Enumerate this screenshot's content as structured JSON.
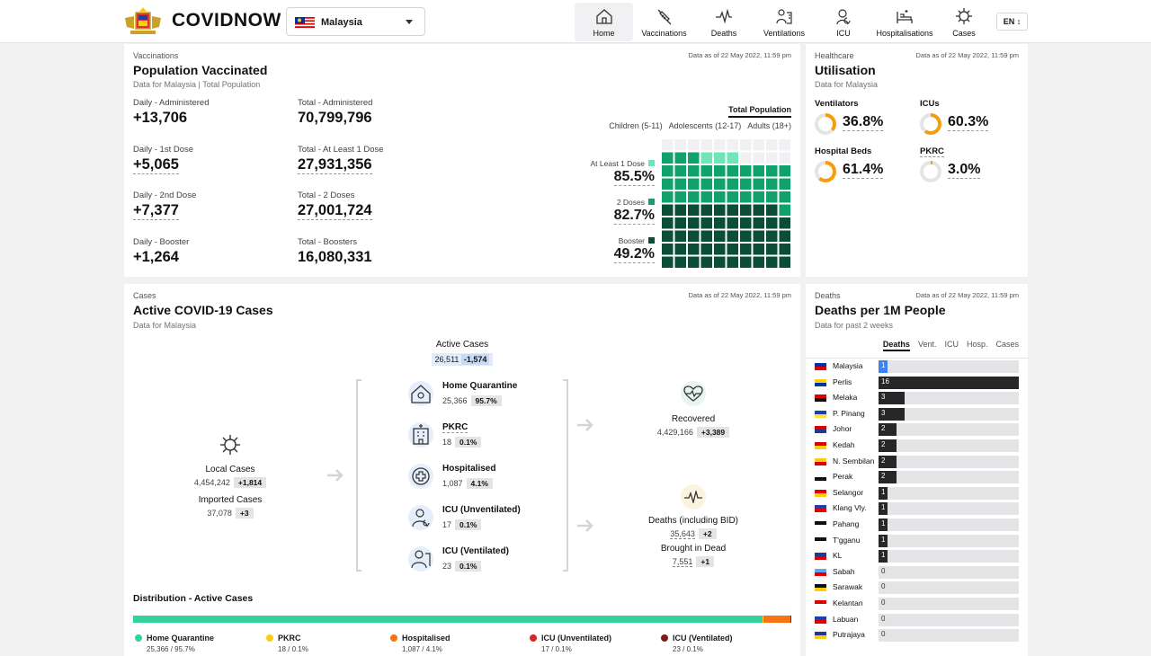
{
  "header": {
    "brand": "COVIDNOW",
    "country": "Malaysia",
    "lang": "EN ↕",
    "nav": [
      {
        "label": "Home",
        "icon": "home-icon"
      },
      {
        "label": "Vaccinations",
        "icon": "syringe-icon"
      },
      {
        "label": "Deaths",
        "icon": "pulse-icon"
      },
      {
        "label": "Ventilations",
        "icon": "ventilator-icon"
      },
      {
        "label": "ICU",
        "icon": "icu-icon"
      },
      {
        "label": "Hospitalisations",
        "icon": "bed-icon"
      },
      {
        "label": "Cases",
        "icon": "virus-icon"
      }
    ]
  },
  "vax": {
    "cat": "Vaccinations",
    "title": "Population Vaccinated",
    "sub1": "Data for Malaysia",
    "sub2": "Total Population",
    "asof": "Data as of 22 May 2022, 11:59 pm",
    "stats": [
      {
        "l": "Daily - Administered",
        "v": "+13,706"
      },
      {
        "l": "Total - Administered",
        "v": "70,799,796"
      },
      {
        "l": "Daily - 1st Dose",
        "v": "+5,065"
      },
      {
        "l": "Total - At Least 1 Dose",
        "v": "27,931,356"
      },
      {
        "l": "Daily - 2nd Dose",
        "v": "+7,377"
      },
      {
        "l": "Total - 2 Doses",
        "v": "27,001,724"
      },
      {
        "l": "Daily - Booster",
        "v": "+1,264"
      },
      {
        "l": "Total - Boosters",
        "v": "16,080,331"
      }
    ],
    "tab_total": "Total Population",
    "tabs": [
      "Children (5-11)",
      "Adolescents (12-17)",
      "Adults (18+)"
    ],
    "waffle": [
      {
        "l": "At Least 1 Dose",
        "v": "85.5%",
        "pct": 85.5,
        "c": "#6ee7b7"
      },
      {
        "l": "2 Doses",
        "v": "82.7%",
        "pct": 82.7,
        "c": "#10a26d"
      },
      {
        "l": "Booster",
        "v": "49.2%",
        "pct": 49.2,
        "c": "#0b4d36"
      }
    ]
  },
  "util": {
    "cat": "Healthcare",
    "title": "Utilisation",
    "sub": "Data for Malaysia",
    "asof": "Data as of 22 May 2022, 11:59 pm",
    "items": [
      {
        "l": "Ventilators",
        "v": "36.8%",
        "pct": 36.8
      },
      {
        "l": "ICUs",
        "v": "60.3%",
        "pct": 60.3
      },
      {
        "l": "Hospital Beds",
        "v": "61.4%",
        "pct": 61.4
      },
      {
        "l": "PKRC",
        "v": "3.0%",
        "pct": 3.0
      }
    ]
  },
  "cases": {
    "cat": "Cases",
    "title": "Active COVID-19 Cases",
    "sub": "Data for Malaysia",
    "asof": "Data as of 22 May 2022, 11:59 pm",
    "active": {
      "l": "Active Cases",
      "v": "26,511",
      "d": "-1,574"
    },
    "local": {
      "l": "Local Cases",
      "v": "4,454,242",
      "d": "+1,814"
    },
    "imported": {
      "l": "Imported Cases",
      "v": "37,078",
      "d": "+3"
    },
    "mid": [
      {
        "l": "Home Quarantine",
        "v": "25,366",
        "d": "95.7%"
      },
      {
        "l": "PKRC",
        "v": "18",
        "d": "0.1%"
      },
      {
        "l": "Hospitalised",
        "v": "1,087",
        "d": "4.1%"
      },
      {
        "l": "ICU (Unventilated)",
        "v": "17",
        "d": "0.1%"
      },
      {
        "l": "ICU (Ventilated)",
        "v": "23",
        "d": "0.1%"
      }
    ],
    "recovered": {
      "l": "Recovered",
      "v": "4,429,166",
      "d": "+3,389"
    },
    "deaths": {
      "l": "Deaths (including BID)",
      "v": "35,643",
      "d": "+2"
    },
    "bid": {
      "l": "Brought in Dead",
      "v": "7,551",
      "d": "+1"
    },
    "dist_title": "Distribution - Active Cases",
    "dist": [
      {
        "l": "Home Quarantine",
        "v": "25,366 / 95.7%",
        "pct": 95.7,
        "c": "#34d399"
      },
      {
        "l": "PKRC",
        "v": "18 / 0.1%",
        "pct": 0.1,
        "c": "#facc15"
      },
      {
        "l": "Hospitalised",
        "v": "1,087 / 4.1%",
        "pct": 4.1,
        "c": "#f97316"
      },
      {
        "l": "ICU (Unventilated)",
        "v": "17 / 0.1%",
        "pct": 0.1,
        "c": "#dc2626"
      },
      {
        "l": "ICU (Ventilated)",
        "v": "23 / 0.1%",
        "pct": 0.1,
        "c": "#7f1d1d"
      }
    ]
  },
  "deaths": {
    "cat": "Deaths",
    "title": "Deaths per 1M People",
    "sub": "Data for past 2 weeks",
    "asof": "Data as of 22 May 2022, 11:59 pm",
    "tabs": [
      "Deaths",
      "Vent.",
      "ICU",
      "Hosp.",
      "Cases"
    ],
    "chart_data": {
      "type": "bar",
      "orientation": "horizontal",
      "xlim": [
        0,
        16
      ],
      "categories": [
        "Malaysia",
        "Perlis",
        "Melaka",
        "P. Pinang",
        "Johor",
        "Kedah",
        "N. Sembilan",
        "Perak",
        "Selangor",
        "Klang Vly.",
        "Pahang",
        "T'gganu",
        "KL",
        "Sabah",
        "Sarawak",
        "Kelantan",
        "Labuan",
        "Putrajaya"
      ],
      "values": [
        1,
        16,
        3,
        3,
        2,
        2,
        2,
        2,
        1,
        1,
        1,
        1,
        1,
        0,
        0,
        0,
        0,
        0
      ],
      "highlight_color": "#3b82f6",
      "bar_color": "#27272a"
    }
  }
}
